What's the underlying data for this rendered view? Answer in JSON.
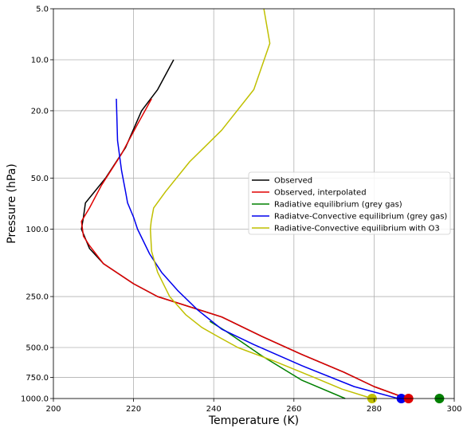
{
  "chart_data": {
    "type": "line",
    "title": "",
    "xlabel": "Temperature (K)",
    "ylabel": "Pressure (hPa)",
    "xlim": [
      200,
      300
    ],
    "ylim": [
      1000,
      5
    ],
    "yscale": "log",
    "grid": true,
    "legend_position": "center-right",
    "xticks": [
      200,
      220,
      240,
      260,
      280,
      300
    ],
    "yticks": [
      5.0,
      10.0,
      20.0,
      50.0,
      100.0,
      250.0,
      500.0,
      750.0,
      1000.0
    ],
    "series": [
      {
        "name": "Observed",
        "color": "#000000",
        "points": [
          [
            288.2,
            1000
          ],
          [
            280,
            850
          ],
          [
            272.5,
            700
          ],
          [
            262,
            550
          ],
          [
            252,
            430
          ],
          [
            242,
            330
          ],
          [
            226,
            250
          ],
          [
            220,
            210
          ],
          [
            212.5,
            160
          ],
          [
            209,
            130
          ],
          [
            207,
            100
          ],
          [
            207.5,
            85
          ],
          [
            208,
            70
          ],
          [
            213,
            50
          ],
          [
            218,
            33
          ],
          [
            222,
            20
          ],
          [
            226,
            15
          ],
          [
            230,
            10
          ]
        ]
      },
      {
        "name": "Observed, interpolated",
        "color": "#e00000",
        "points": [
          [
            288.2,
            1000
          ],
          [
            280,
            850
          ],
          [
            272.5,
            700
          ],
          [
            262,
            550
          ],
          [
            252,
            430
          ],
          [
            242,
            330
          ],
          [
            226,
            250
          ],
          [
            220,
            210
          ],
          [
            212.5,
            160
          ],
          [
            209,
            125
          ],
          [
            207.5,
            110
          ],
          [
            207,
            90
          ],
          [
            209,
            75
          ],
          [
            212,
            55
          ],
          [
            217,
            36
          ],
          [
            221,
            24
          ],
          [
            224.5,
            17
          ]
        ]
      },
      {
        "name": "Radiative equilibrium (grey gas)",
        "color": "#008000",
        "points": [
          [
            272.8,
            1000
          ],
          [
            262,
            780
          ],
          [
            252,
            560
          ],
          [
            243,
            400
          ],
          [
            239,
            350
          ]
        ]
      },
      {
        "name": "Radiatve-Convective equilibrium (grey gas)",
        "color": "#0000ee",
        "points": [
          [
            286,
            1000
          ],
          [
            275,
            850
          ],
          [
            262,
            640
          ],
          [
            250,
            480
          ],
          [
            242,
            390
          ],
          [
            236,
            300
          ],
          [
            231,
            230
          ],
          [
            227,
            180
          ],
          [
            224,
            140
          ],
          [
            221,
            100
          ],
          [
            220,
            85
          ],
          [
            218.5,
            70
          ],
          [
            218,
            60
          ],
          [
            217,
            45
          ],
          [
            216,
            30
          ],
          [
            215.7,
            17
          ]
        ]
      },
      {
        "name": "Radiative-Convective equilibrium with O3",
        "color": "#c0c000",
        "points": [
          [
            279.5,
            1000
          ],
          [
            272,
            880
          ],
          [
            265,
            750
          ],
          [
            255,
            600
          ],
          [
            246,
            500
          ],
          [
            241,
            430
          ],
          [
            237,
            380
          ],
          [
            233,
            320
          ],
          [
            229,
            250
          ],
          [
            226,
            180
          ],
          [
            224.5,
            135
          ],
          [
            224.2,
            100
          ],
          [
            224.4,
            90
          ],
          [
            225,
            75
          ],
          [
            228,
            60
          ],
          [
            234,
            40
          ],
          [
            242,
            26
          ],
          [
            250,
            15
          ],
          [
            254,
            8
          ],
          [
            252.5,
            5
          ]
        ]
      }
    ],
    "surface_points": [
      {
        "color": "#c0c000",
        "x": 279.5,
        "y": 1000
      },
      {
        "color": "#0000ee",
        "x": 286.8,
        "y": 1000
      },
      {
        "color": "#e00000",
        "x": 288.6,
        "y": 1000
      },
      {
        "color": "#008000",
        "x": 296.3,
        "y": 1000
      }
    ]
  }
}
